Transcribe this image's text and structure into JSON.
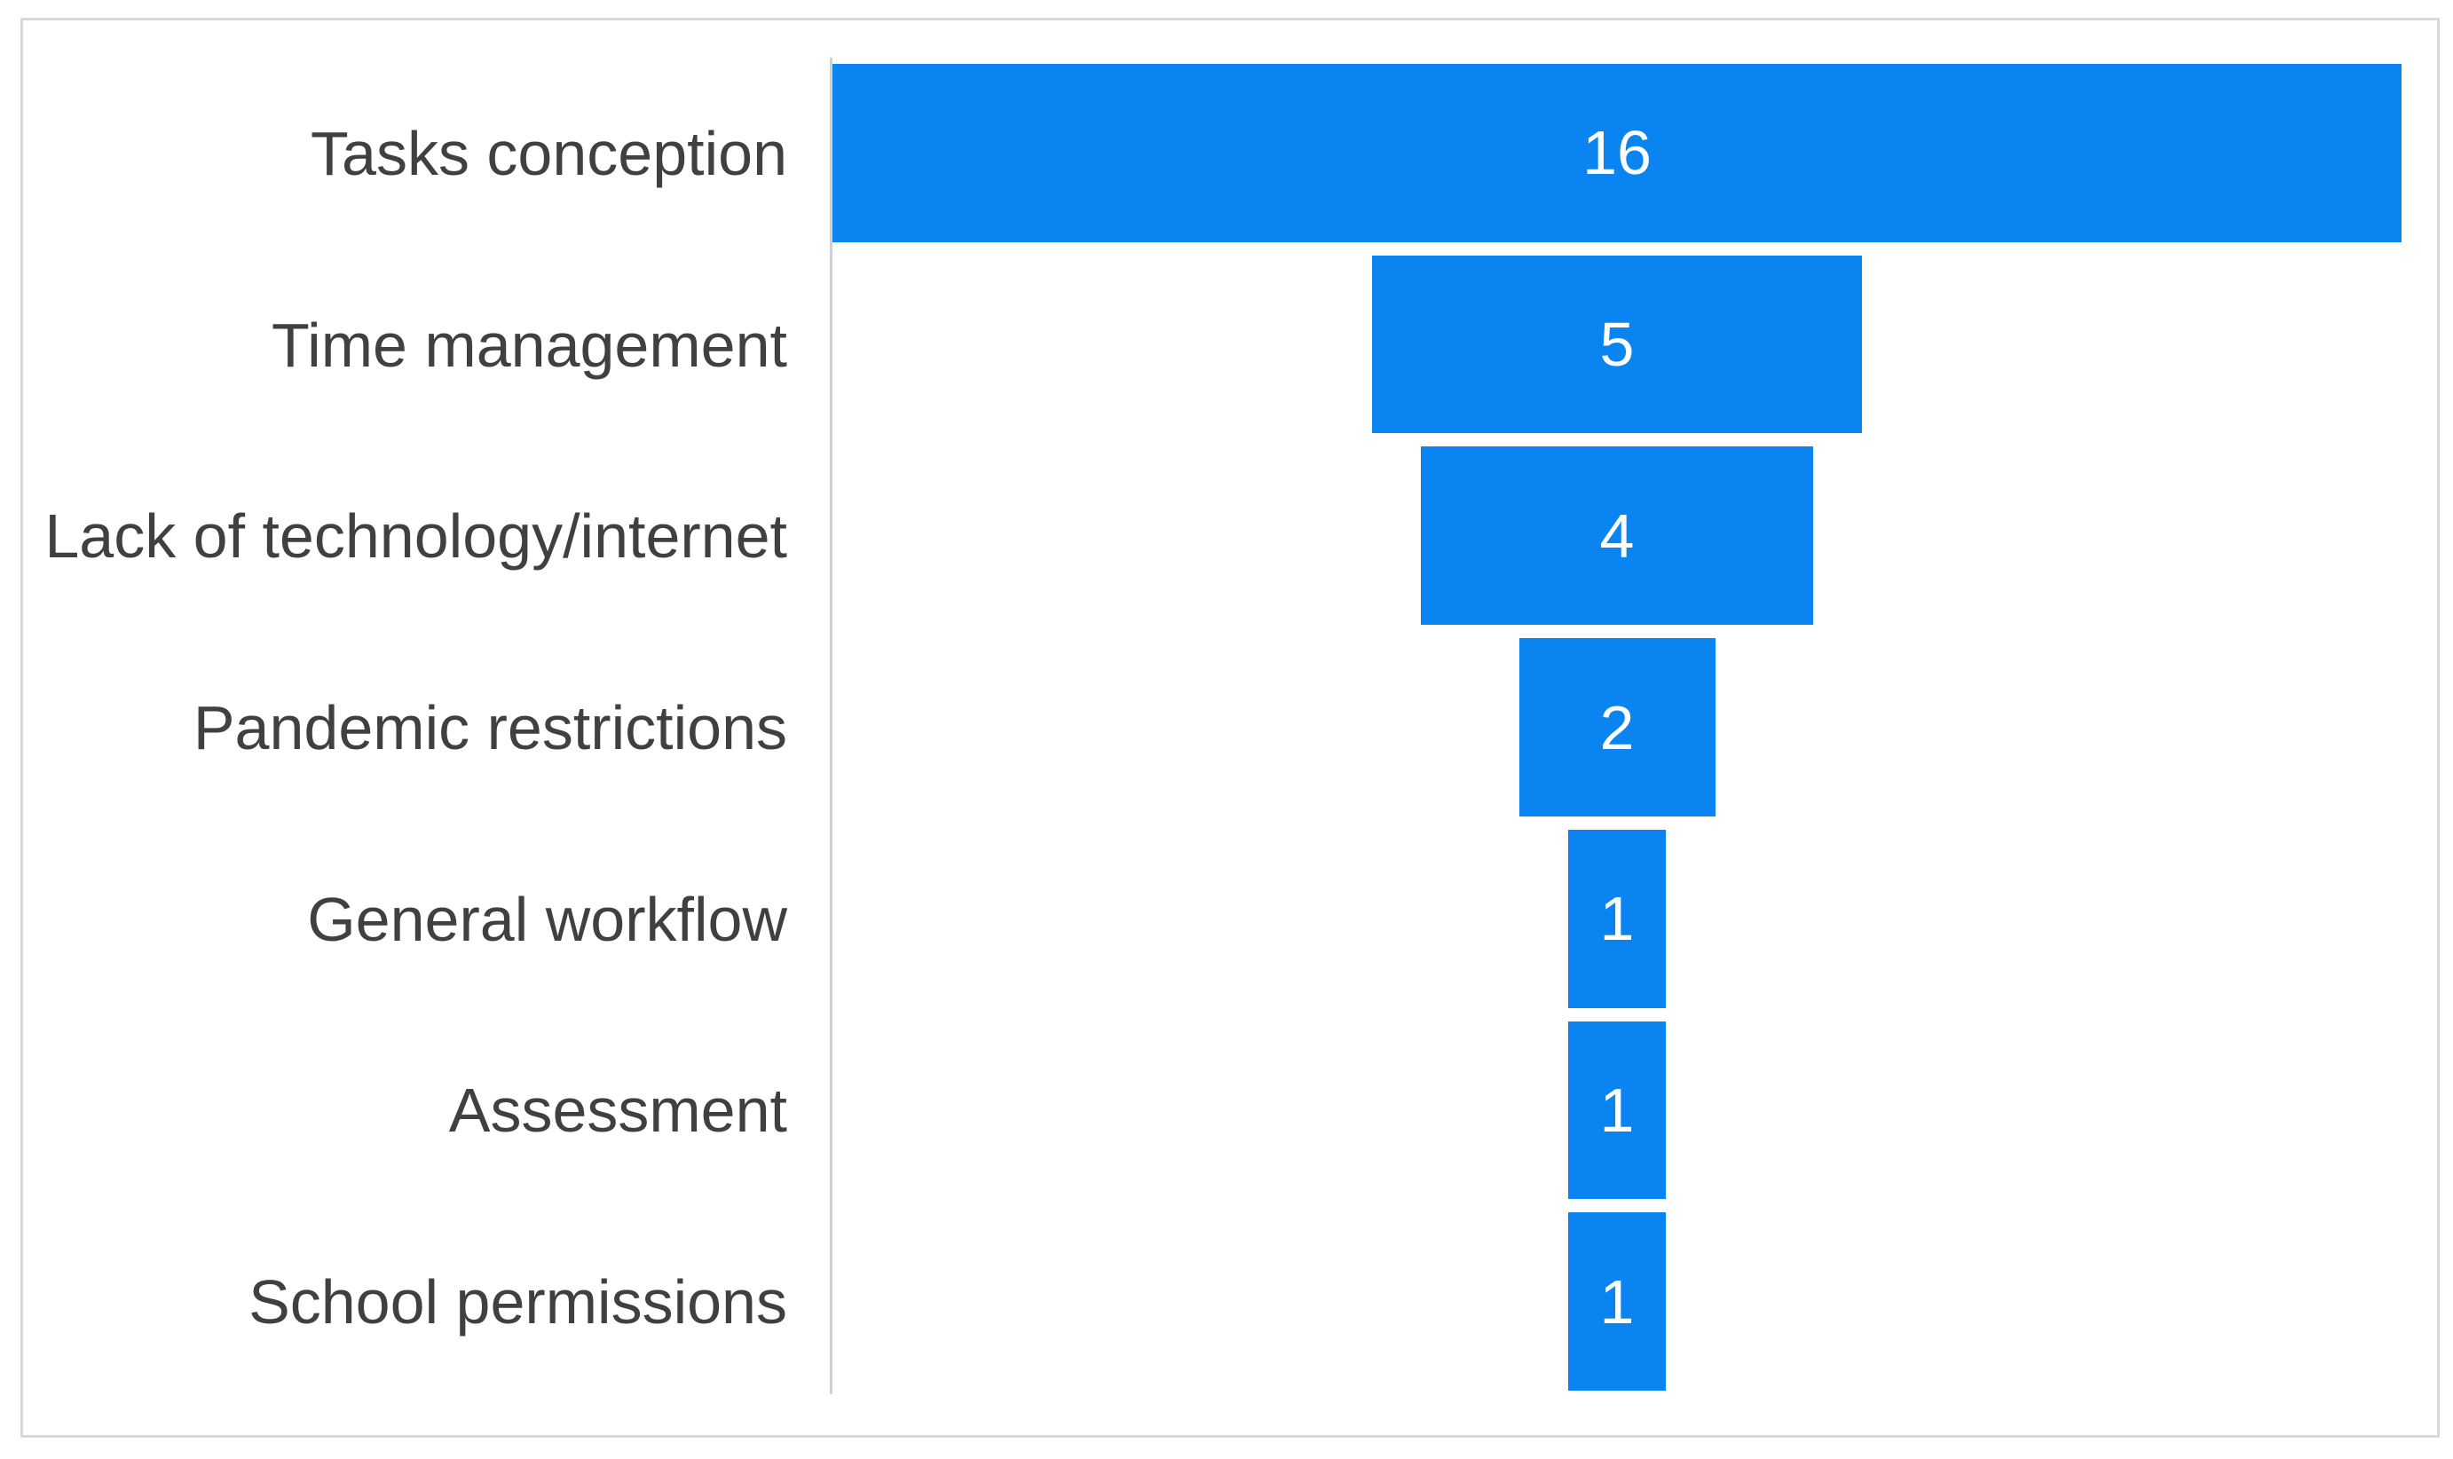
{
  "chart_data": {
    "type": "bar",
    "subtype": "horizontal-centered-funnel",
    "categories": [
      "Tasks conception",
      "Time management",
      "Lack of technology/internet",
      "Pandemic restrictions",
      "General workflow",
      "Assessment",
      "School permissions"
    ],
    "values": [
      16,
      5,
      4,
      2,
      1,
      1,
      1
    ],
    "title": "",
    "xlabel": "",
    "ylabel": "",
    "xlim": [
      0,
      16
    ],
    "grid": false,
    "legend": false,
    "value_labels": "inside-center-white"
  },
  "colors": {
    "bar": "#0a84f0",
    "label_text": "#404040",
    "value_text": "#ffffff",
    "axis_line": "#d0d0d0",
    "frame_border": "#d9d9d9",
    "background": "#ffffff"
  }
}
